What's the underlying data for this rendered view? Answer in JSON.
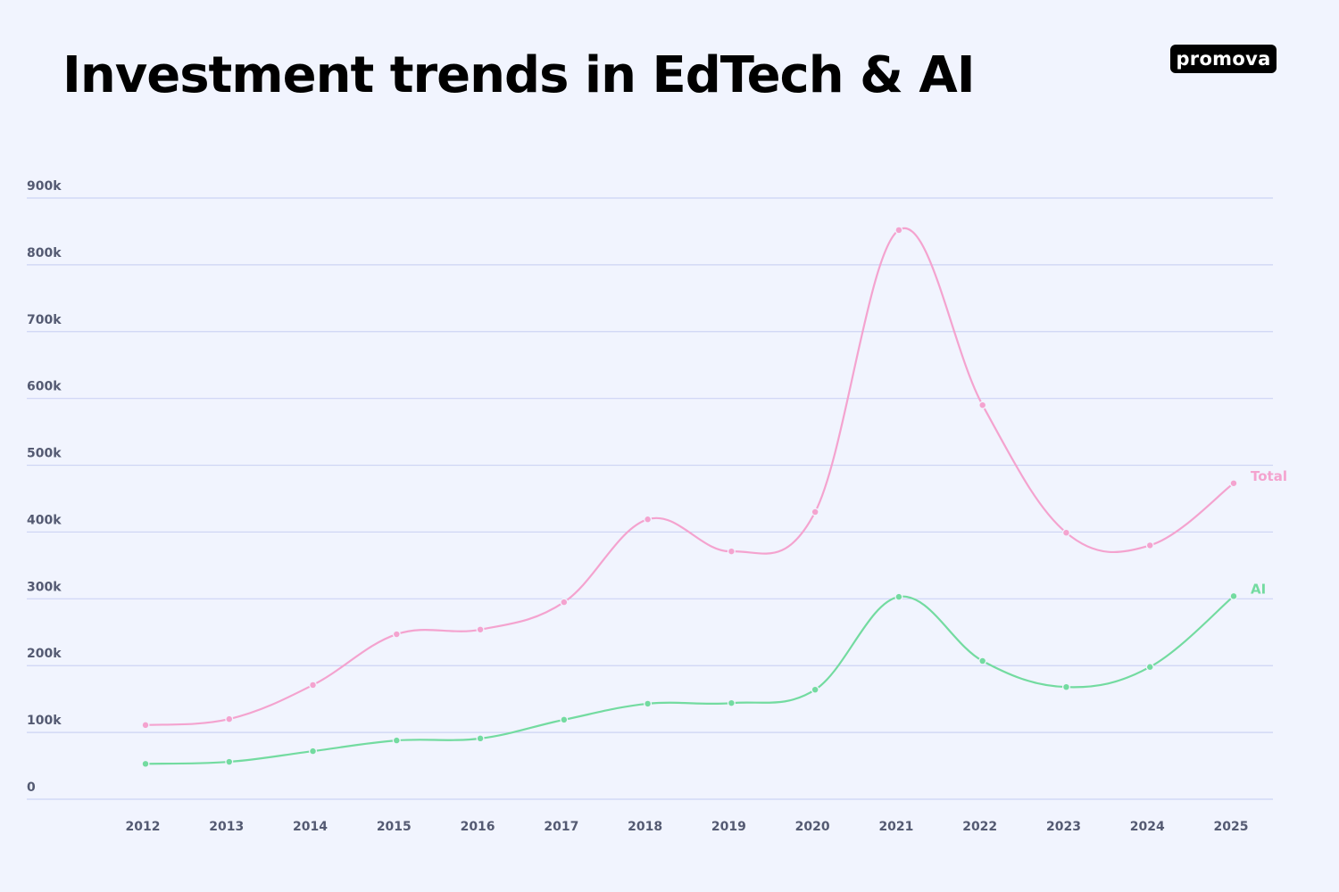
{
  "header": {
    "title": "Investment trends in EdTech & AI",
    "logo_text": "promova"
  },
  "colors": {
    "background": "#f1f4fe",
    "grid": "#cdd4f4",
    "axis_text": "#545a72",
    "total": "#f4a3cf",
    "ai": "#73dba0"
  },
  "chart_data": {
    "type": "line",
    "title": "Investment trends in EdTech & AI",
    "xlabel": "",
    "ylabel": "",
    "categories": [
      "2012",
      "2013",
      "2014",
      "2015",
      "2016",
      "2017",
      "2018",
      "2019",
      "2020",
      "2021",
      "2022",
      "2023",
      "2024",
      "2025"
    ],
    "x": [
      2012,
      2013,
      2014,
      2015,
      2016,
      2017,
      2018,
      2019,
      2020,
      2021,
      2022,
      2023,
      2024,
      2025
    ],
    "series": [
      {
        "name": "Total",
        "color": "#f4a3cf",
        "values": [
          111000,
          120000,
          171000,
          247000,
          254000,
          295000,
          419000,
          371000,
          430000,
          852000,
          590000,
          399000,
          380000,
          473000
        ]
      },
      {
        "name": "AI",
        "color": "#73dba0",
        "values": [
          53000,
          56000,
          72000,
          88000,
          91000,
          119000,
          143000,
          144000,
          164000,
          303000,
          207000,
          168000,
          198000,
          304000
        ]
      }
    ],
    "ylim": [
      0,
      900000
    ],
    "yticks": [
      0,
      100000,
      200000,
      300000,
      400000,
      500000,
      600000,
      700000,
      800000,
      900000
    ],
    "ytick_labels": [
      "0",
      "100k",
      "200k",
      "300k",
      "400k",
      "500k",
      "600k",
      "700k",
      "800k",
      "900k"
    ],
    "grid": true,
    "legend": "inline labels at line ends (right)",
    "smooth": true,
    "markers": true
  }
}
